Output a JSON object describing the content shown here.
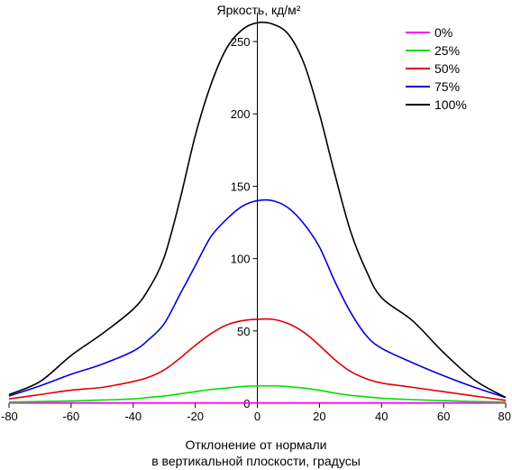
{
  "chart_data": {
    "type": "line",
    "title": "Яркость, кд/м²",
    "xlabel_line1": "Отклонение от нормали",
    "xlabel_line2": "в вертикальной плоскости, градусы",
    "ylabel": "Яркость, кд/м²",
    "xlim": [
      -80,
      80
    ],
    "ylim": [
      0,
      265
    ],
    "x_ticks": [
      "-80",
      "-60",
      "-40",
      "-20",
      "0",
      "20",
      "40",
      "60",
      "80"
    ],
    "y_ticks": [
      "0",
      "50",
      "100",
      "150",
      "200",
      "250"
    ],
    "legend_position": "top-right",
    "grid": false,
    "x": [
      -80,
      -70,
      -60,
      -50,
      -40,
      -35,
      -30,
      -25,
      -20,
      -15,
      -10,
      -5,
      0,
      5,
      10,
      15,
      20,
      25,
      30,
      35,
      40,
      50,
      60,
      70,
      80
    ],
    "series": [
      {
        "name": "0%",
        "color": "#ff00ff",
        "values": [
          0.3,
          0.3,
          0.3,
          0.3,
          0.3,
          0.3,
          0.3,
          0.3,
          0.3,
          0.3,
          0.3,
          0.3,
          0.3,
          0.3,
          0.3,
          0.3,
          0.3,
          0.3,
          0.3,
          0.3,
          0.3,
          0.3,
          0.3,
          0.3,
          0.3
        ]
      },
      {
        "name": "25%",
        "color": "#00e000",
        "values": [
          0.8,
          1.2,
          1.6,
          2.2,
          3,
          4,
          5,
          6.5,
          8,
          9.5,
          10.5,
          11.5,
          12,
          12,
          11.5,
          10.5,
          9,
          7,
          5.5,
          4.5,
          3.5,
          2.5,
          1.8,
          1.2,
          0.8
        ]
      },
      {
        "name": "50%",
        "color": "#e00000",
        "values": [
          3,
          6,
          9,
          11,
          15,
          18,
          23,
          31,
          40,
          48,
          54,
          57,
          58,
          58,
          55,
          49,
          40,
          30,
          22,
          17,
          14,
          11,
          8,
          5,
          2
        ]
      },
      {
        "name": "75%",
        "color": "#0000e0",
        "values": [
          5,
          12,
          20,
          27,
          36,
          44,
          55,
          75,
          95,
          115,
          127,
          136,
          140,
          140,
          135,
          124,
          108,
          84,
          63,
          47,
          38,
          28,
          19,
          11,
          4
        ]
      },
      {
        "name": "100%",
        "color": "#000000",
        "values": [
          6,
          15,
          33,
          48,
          65,
          79,
          101,
          140,
          185,
          220,
          245,
          258,
          263,
          262,
          255,
          235,
          200,
          158,
          119,
          92,
          73,
          57,
          35,
          16,
          4
        ]
      }
    ]
  }
}
